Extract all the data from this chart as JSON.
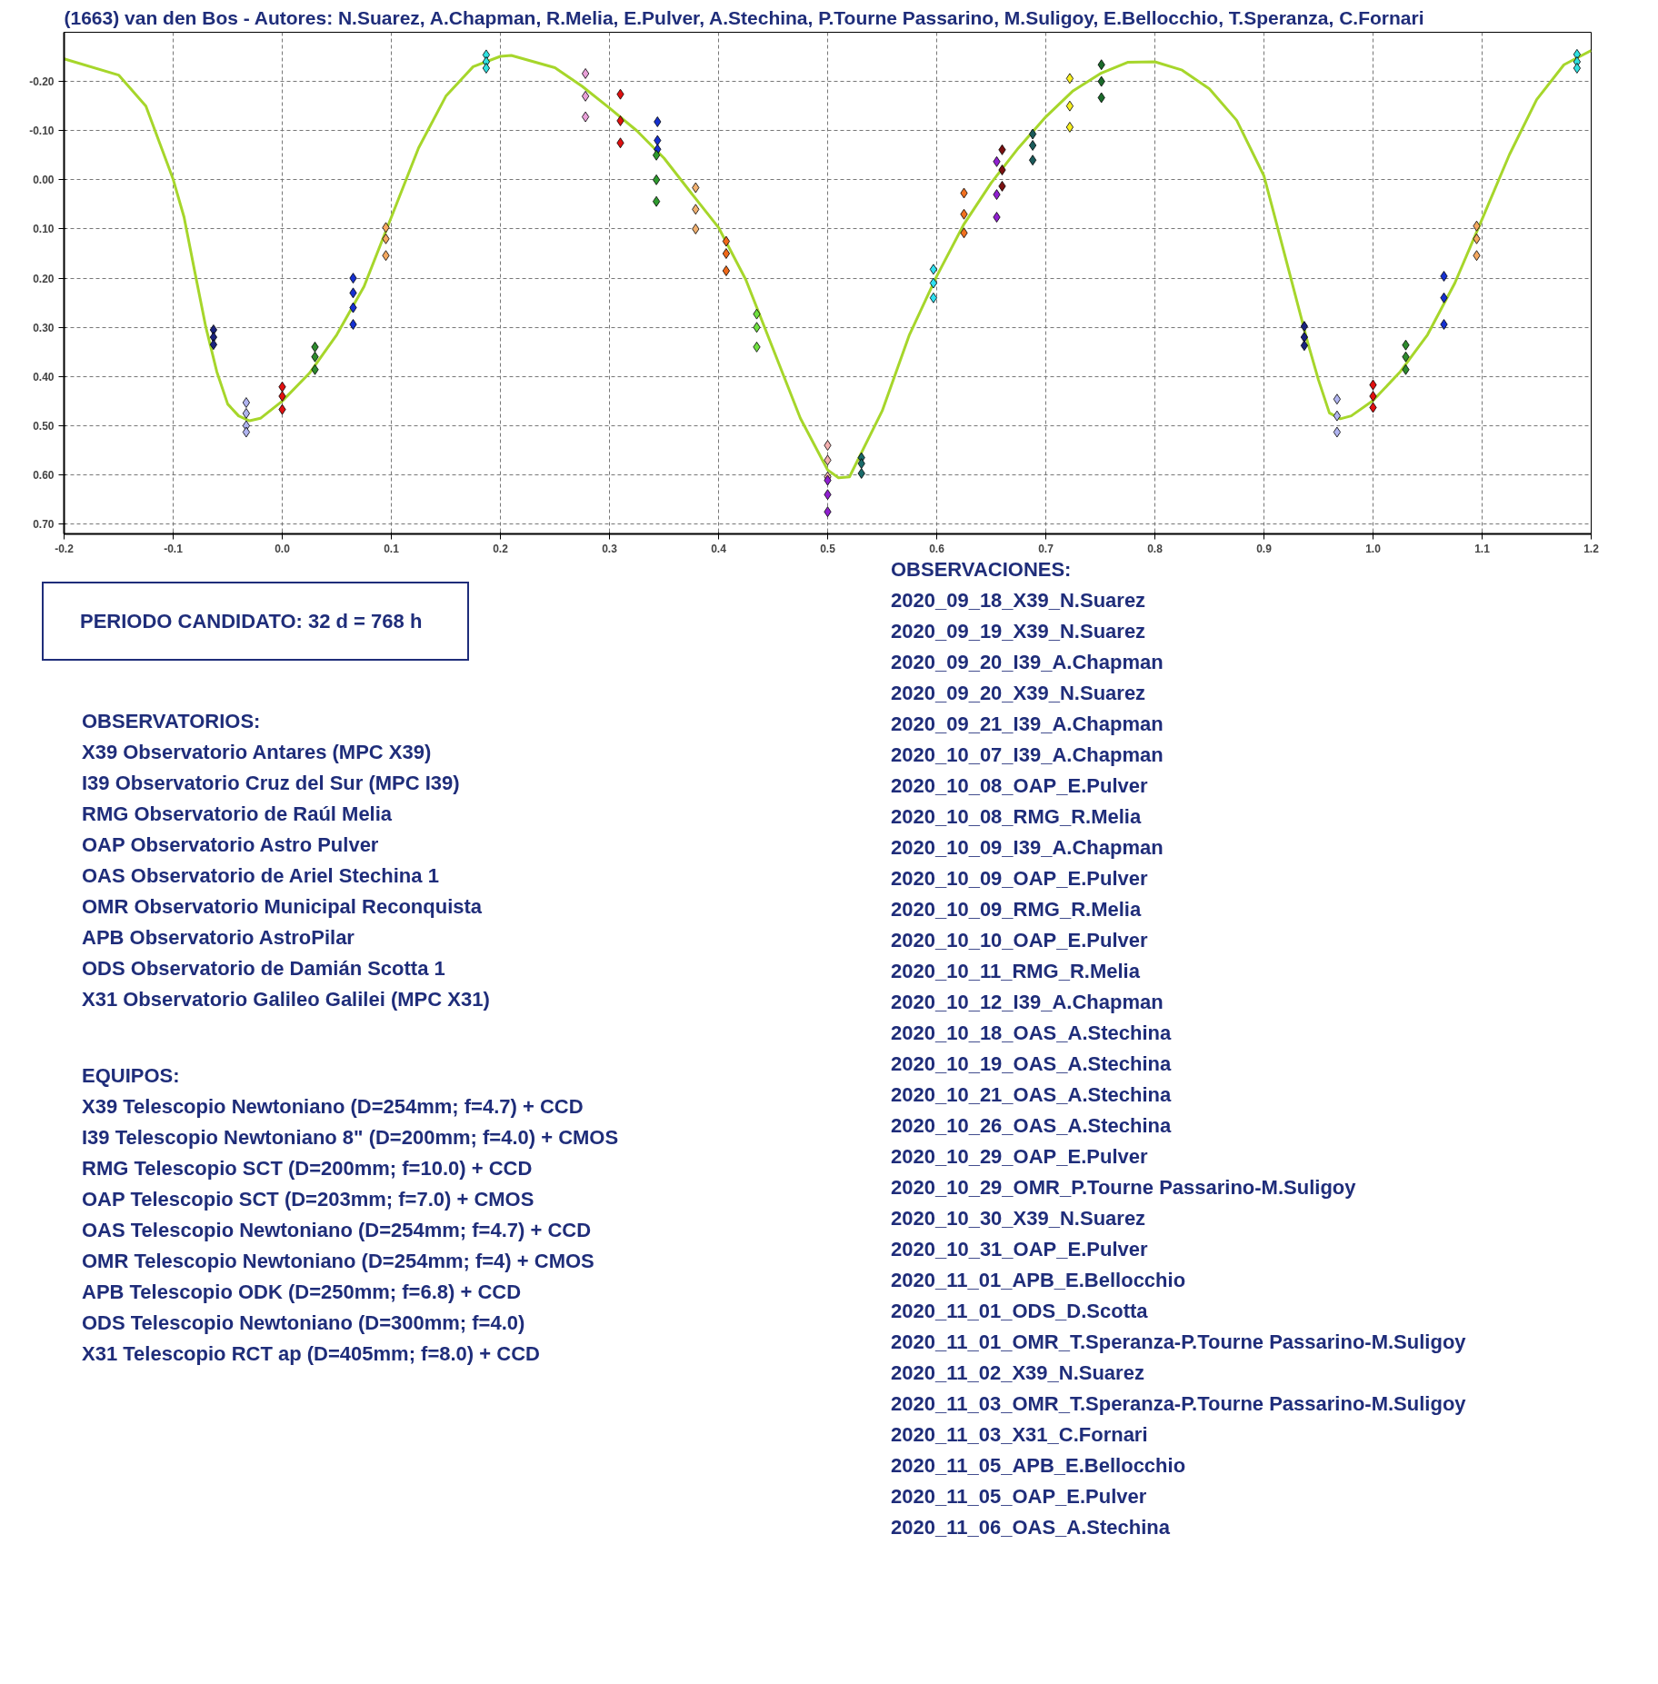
{
  "chart_data": {
    "type": "scatter",
    "title": "(1663) van den Bos - Autores: N.Suarez, A.Chapman, R.Melia, E.Pulver, A.Stechina, P.Tourne Passarino, M.Suligoy, E.Bellocchio, T.Speranza, C.Fornari",
    "xlim": [
      -0.2,
      1.2
    ],
    "ylim": [
      0.72,
      -0.3
    ],
    "xticks": [
      -0.2,
      -0.1,
      {
        "value": 0,
        "label": "0.0"
      },
      0.1,
      0.2,
      0.3,
      0.4,
      0.5,
      0.6,
      0.7,
      0.8,
      0.9,
      {
        "value": 1,
        "label": "1.0"
      },
      1.1,
      1.2
    ],
    "yticks": [
      {
        "value": -0.2,
        "label": "-0.20"
      },
      {
        "value": -0.1,
        "label": "-0.10"
      },
      {
        "value": 0,
        "label": "0.00"
      },
      {
        "value": 0.1,
        "label": "0.10"
      },
      {
        "value": 0.2,
        "label": "0.20"
      },
      {
        "value": 0.3,
        "label": "0.30"
      },
      {
        "value": 0.4,
        "label": "0.40"
      },
      {
        "value": 0.5,
        "label": "0.50"
      },
      {
        "value": 0.6,
        "label": "0.60"
      },
      {
        "value": 0.7,
        "label": "0.70"
      }
    ],
    "grid": true,
    "marker": "diamond",
    "series": [
      {
        "type": "line",
        "marker": "none",
        "color": "#a6d62b",
        "x": [
          -0.2,
          -0.15,
          -0.125,
          -0.1,
          -0.09,
          -0.08,
          -0.07,
          -0.06,
          -0.05,
          -0.04,
          -0.03,
          -0.02,
          0.0,
          0.025,
          0.05,
          0.075,
          0.1,
          0.125,
          0.15,
          0.175,
          0.2,
          0.21,
          0.25,
          0.275,
          0.3,
          0.325,
          0.35,
          0.375,
          0.4,
          0.425,
          0.45,
          0.475,
          0.5,
          0.51,
          0.52,
          0.55,
          0.575,
          0.6,
          0.625,
          0.65,
          0.675,
          0.7,
          0.725,
          0.75,
          0.775,
          0.8,
          0.825,
          0.85,
          0.875,
          0.9,
          0.91,
          0.925,
          0.94,
          0.95,
          0.96,
          0.97,
          0.98,
          1.0,
          1.025,
          1.05,
          1.075,
          1.1,
          1.125,
          1.15,
          1.175,
          1.2
        ],
        "values": [
          -0.246,
          -0.213,
          -0.15,
          -0.001,
          0.076,
          0.189,
          0.3,
          0.39,
          0.456,
          0.48,
          0.49,
          0.485,
          0.45,
          0.393,
          0.315,
          0.217,
          0.076,
          -0.065,
          -0.17,
          -0.23,
          -0.251,
          -0.253,
          -0.228,
          -0.19,
          -0.146,
          -0.1,
          -0.044,
          0.027,
          0.097,
          0.203,
          0.344,
          0.485,
          0.59,
          0.606,
          0.604,
          0.47,
          0.315,
          0.196,
          0.09,
          0.006,
          -0.065,
          -0.128,
          -0.181,
          -0.216,
          -0.239,
          -0.24,
          -0.223,
          -0.185,
          -0.121,
          -0.008,
          0.076,
          0.203,
          0.33,
          0.407,
          0.474,
          0.486,
          0.48,
          0.449,
          0.39,
          0.315,
          0.21,
          0.08,
          -0.051,
          -0.163,
          -0.234,
          -0.263
        ]
      },
      {
        "color": "#1a237e",
        "x": [
          -0.063,
          -0.063,
          -0.063
        ],
        "values": [
          0.305,
          0.32,
          0.335
        ]
      },
      {
        "color": "#b0b4f0",
        "x": [
          -0.033,
          -0.033,
          -0.033,
          -0.033
        ],
        "values": [
          0.453,
          0.475,
          0.5,
          0.513
        ]
      },
      {
        "color": "#e01010",
        "x": [
          0.0,
          0.0,
          0.0
        ],
        "values": [
          0.421,
          0.44,
          0.467
        ]
      },
      {
        "color": "#2e8b2e",
        "x": [
          0.03,
          0.03,
          0.03
        ],
        "values": [
          0.34,
          0.36,
          0.386
        ]
      },
      {
        "color": "#1530d0",
        "x": [
          0.065,
          0.065,
          0.065,
          0.065
        ],
        "values": [
          0.2,
          0.23,
          0.26,
          0.294
        ]
      },
      {
        "color": "#f4a860",
        "x": [
          0.095,
          0.095,
          0.095
        ],
        "values": [
          0.097,
          0.12,
          0.154
        ]
      },
      {
        "color": "#30e0e0",
        "x": [
          0.187,
          0.187,
          0.187
        ],
        "values": [
          -0.254,
          -0.24,
          -0.227
        ]
      },
      {
        "color": "#e8a0d8",
        "x": [
          0.278,
          0.278,
          0.278
        ],
        "values": [
          -0.216,
          -0.17,
          -0.128
        ]
      },
      {
        "color": "#e01010",
        "x": [
          0.31,
          0.31,
          0.31
        ],
        "values": [
          -0.174,
          -0.12,
          -0.075
        ]
      },
      {
        "color": "#1530d0",
        "x": [
          0.344,
          0.344,
          0.344
        ],
        "values": [
          -0.118,
          -0.08,
          -0.062
        ]
      },
      {
        "color": "#2e9b2e",
        "x": [
          0.343,
          0.343,
          0.343
        ],
        "values": [
          -0.05,
          0.0,
          0.044
        ]
      },
      {
        "color": "#f0b070",
        "x": [
          0.379,
          0.379,
          0.379
        ],
        "values": [
          0.016,
          0.06,
          0.1
        ]
      },
      {
        "color": "#f06818",
        "x": [
          0.407,
          0.407,
          0.407
        ],
        "values": [
          0.125,
          0.15,
          0.185
        ]
      },
      {
        "color": "#70e040",
        "x": [
          0.435,
          0.435,
          0.435
        ],
        "values": [
          0.273,
          0.3,
          0.34
        ]
      },
      {
        "color": "#f4b0b0",
        "x": [
          0.5,
          0.5,
          0.5
        ],
        "values": [
          0.54,
          0.57,
          0.604
        ]
      },
      {
        "color": "#9020d0",
        "x": [
          0.5,
          0.5,
          0.5
        ],
        "values": [
          0.611,
          0.64,
          0.675
        ]
      },
      {
        "color": "#1a6a6a",
        "x": [
          0.531,
          0.531,
          0.531
        ],
        "values": [
          0.565,
          0.577,
          0.597
        ]
      },
      {
        "color": "#30e0f0",
        "x": [
          0.597,
          0.597,
          0.597
        ],
        "values": [
          0.182,
          0.21,
          0.24
        ]
      },
      {
        "color": "#f07020",
        "x": [
          0.625,
          0.625,
          0.625
        ],
        "values": [
          0.027,
          0.07,
          0.108
        ]
      },
      {
        "color": "#9020d0",
        "x": [
          0.655,
          0.655,
          0.655
        ],
        "values": [
          -0.037,
          0.03,
          0.076
        ]
      },
      {
        "color": "#7a1010",
        "x": [
          0.66,
          0.66,
          0.66
        ],
        "values": [
          -0.061,
          -0.02,
          0.013
        ]
      },
      {
        "color": "#1a5a5a",
        "x": [
          0.688,
          0.688,
          0.688
        ],
        "values": [
          -0.093,
          -0.07,
          -0.04
        ]
      },
      {
        "color": "#f8f020",
        "x": [
          0.722,
          0.722,
          0.722
        ],
        "values": [
          -0.206,
          -0.15,
          -0.107
        ]
      },
      {
        "color": "#1a6a2a",
        "x": [
          0.751,
          0.751,
          0.751
        ],
        "values": [
          -0.234,
          -0.2,
          -0.167
        ]
      },
      {
        "color": "#1a237e",
        "x": [
          0.937,
          0.937,
          0.937
        ],
        "values": [
          0.298,
          0.32,
          0.337
        ]
      },
      {
        "color": "#b0b4f0",
        "x": [
          0.967,
          0.967,
          0.967
        ],
        "values": [
          0.446,
          0.48,
          0.513
        ]
      },
      {
        "color": "#e01010",
        "x": [
          1.0,
          1.0,
          1.0
        ],
        "values": [
          0.417,
          0.44,
          0.463
        ]
      },
      {
        "color": "#2e8b2e",
        "x": [
          1.03,
          1.03,
          1.03
        ],
        "values": [
          0.336,
          0.36,
          0.386
        ]
      },
      {
        "color": "#1530d0",
        "x": [
          1.065,
          1.065,
          1.065
        ],
        "values": [
          0.196,
          0.24,
          0.294
        ]
      },
      {
        "color": "#f4a860",
        "x": [
          1.095,
          1.095,
          1.095
        ],
        "values": [
          0.094,
          0.12,
          0.154
        ]
      },
      {
        "color": "#30e0e0",
        "x": [
          1.187,
          1.187,
          1.187
        ],
        "values": [
          -0.255,
          -0.24,
          -0.227
        ]
      }
    ],
    "annotations": [
      "PERIODO CANDIDATO: 32 d = 768 h",
      "OBSERVATORIOS:\nX39 Observatorio Antares (MPC X39)\nI39 Observatorio Cruz del Sur (MPC I39)\nRMG Observatorio de Raúl Melia\nOAP Observatorio Astro Pulver\nOAS Observatorio de Ariel Stechina 1\nOMR Observatorio Municipal Reconquista\nAPB Observatorio AstroPilar\nODS Observatorio de Damián Scotta 1\nX31 Observatorio Galileo Galilei (MPC X31)",
      "EQUIPOS:\nX39 Telescopio Newtoniano (D=254mm; f=4.7) + CCD\nI39 Telescopio Newtoniano 8\" (D=200mm; f=4.0) + CMOS\nRMG Telescopio SCT (D=200mm; f=10.0) + CCD\nOAP Telescopio SCT (D=203mm; f=7.0) + CMOS\nOAS Telescopio Newtoniano (D=254mm; f=4.7) + CCD\nOMR Telescopio Newtoniano (D=254mm; f=4) + CMOS\nAPB Telescopio ODK (D=250mm; f=6.8) + CCD\nODS Telescopio Newtoniano (D=300mm; f=4.0)\nX31 Telescopio RCT ap (D=405mm; f=8.0) + CCD",
      "OBSERVACIONES:\n2020_09_18_X39_N.Suarez\n2020_09_19_X39_N.Suarez\n2020_09_20_I39_A.Chapman\n2020_09_20_X39_N.Suarez\n2020_09_21_I39_A.Chapman\n2020_10_07_I39_A.Chapman\n2020_10_08_OAP_E.Pulver\n2020_10_08_RMG_R.Melia\n2020_10_09_I39_A.Chapman\n2020_10_09_OAP_E.Pulver\n2020_10_09_RMG_R.Melia\n2020_10_10_OAP_E.Pulver\n2020_10_11_RMG_R.Melia\n2020_10_12_I39_A.Chapman\n2020_10_18_OAS_A.Stechina\n2020_10_19_OAS_A.Stechina\n2020_10_21_OAS_A.Stechina\n2020_10_26_OAS_A.Stechina\n2020_10_29_OAP_E.Pulver\n2020_10_29_OMR_P.Tourne Passarino-M.Suligoy\n2020_10_30_X39_N.Suarez\n2020_10_31_OAP_E.Pulver\n2020_11_01_APB_E.Bellocchio\n2020_11_01_ODS_D.Scotta\n2020_11_01_OMR_T.Speranza-P.Tourne Passarino-M.Suligoy\n2020_11_02_X39_N.Suarez\n2020_11_03_OMR_T.Speranza-P.Tourne Passarino-M.Suligoy\n2020_11_03_X31_C.Fornari\n2020_11_05_APB_E.Bellocchio\n2020_11_05_OAP_E.Pulver\n2020_11_06_OAS_A.Stechina"
    ]
  }
}
